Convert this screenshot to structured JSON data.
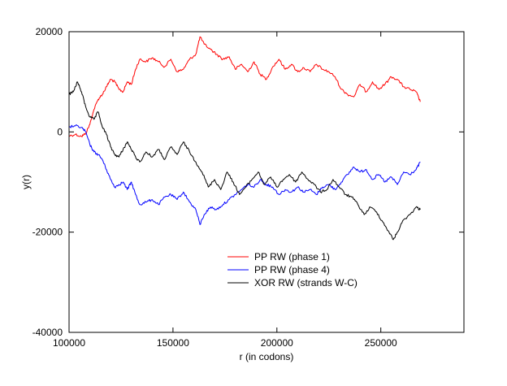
{
  "chart_data": {
    "type": "line",
    "title": "",
    "xlabel": "r (in codons)",
    "ylabel": "y(r)",
    "xlim": [
      100000,
      290000
    ],
    "ylim": [
      -40000,
      20000
    ],
    "xticks": [
      100000,
      150000,
      200000,
      250000
    ],
    "xtick_labels": [
      "100000",
      "150000",
      "200000",
      "250000"
    ],
    "yticks": [
      -40000,
      -20000,
      0,
      20000
    ],
    "ytick_labels": [
      "-40000",
      "-20000",
      "0",
      "20000"
    ],
    "grid": false,
    "legend_position": "center-right",
    "series": [
      {
        "name": "PP RW (phase 1)",
        "color": "#ff0000",
        "x": [
          100000,
          103000,
          106000,
          108000,
          110000,
          112000,
          114000,
          116000,
          118000,
          120000,
          122000,
          124000,
          126000,
          128000,
          130000,
          132000,
          134000,
          137000,
          140000,
          143000,
          146000,
          149000,
          152000,
          155000,
          158000,
          161000,
          163000,
          165000,
          168000,
          171000,
          174000,
          177000,
          180000,
          183000,
          186000,
          189000,
          192000,
          195000,
          198000,
          201000,
          204000,
          207000,
          210000,
          213000,
          216000,
          219000,
          222000,
          225000,
          228000,
          231000,
          234000,
          237000,
          240000,
          243000,
          246000,
          249000,
          252000,
          255000,
          258000,
          261000,
          264000,
          267000,
          269000
        ],
        "y": [
          -800,
          -500,
          -900,
          -300,
          1500,
          4500,
          6500,
          7500,
          9000,
          10500,
          10000,
          8500,
          8000,
          10000,
          9500,
          12500,
          14500,
          14000,
          14800,
          14000,
          13000,
          14500,
          12000,
          12500,
          14500,
          15500,
          19000,
          17500,
          16500,
          15500,
          14500,
          15000,
          12500,
          13500,
          12000,
          14000,
          11500,
          10500,
          13000,
          14500,
          12500,
          13500,
          12000,
          12800,
          12000,
          13500,
          12500,
          12000,
          11000,
          8500,
          7500,
          7000,
          9500,
          8000,
          10000,
          8500,
          9500,
          11000,
          10500,
          9000,
          8500,
          8000,
          6000
        ]
      },
      {
        "name": "PP RW (phase 4)",
        "color": "#0000ff",
        "x": [
          100000,
          103000,
          106000,
          108000,
          110000,
          112000,
          114000,
          116000,
          118000,
          120000,
          122000,
          124000,
          126000,
          128000,
          130000,
          132000,
          134000,
          137000,
          140000,
          143000,
          146000,
          149000,
          152000,
          155000,
          158000,
          161000,
          163000,
          165000,
          168000,
          171000,
          174000,
          177000,
          180000,
          183000,
          186000,
          189000,
          192000,
          195000,
          198000,
          201000,
          204000,
          207000,
          210000,
          213000,
          216000,
          219000,
          222000,
          225000,
          228000,
          231000,
          234000,
          237000,
          240000,
          243000,
          246000,
          249000,
          252000,
          255000,
          258000,
          261000,
          264000,
          267000,
          269000
        ],
        "y": [
          1000,
          1200,
          900,
          0,
          -2500,
          -4000,
          -4500,
          -5500,
          -7500,
          -9500,
          -11000,
          -10500,
          -10000,
          -11500,
          -10000,
          -12500,
          -14500,
          -14000,
          -13500,
          -14500,
          -13000,
          -12500,
          -13500,
          -12000,
          -14000,
          -15500,
          -18500,
          -16500,
          -15000,
          -15500,
          -14500,
          -13500,
          -12500,
          -11500,
          -10500,
          -11000,
          -9500,
          -10500,
          -11000,
          -12500,
          -11500,
          -12000,
          -11000,
          -12000,
          -11500,
          -12500,
          -11000,
          -10500,
          -11500,
          -10000,
          -8500,
          -7000,
          -8000,
          -7500,
          -9500,
          -8500,
          -10000,
          -9000,
          -10500,
          -8000,
          -8500,
          -7500,
          -6000
        ]
      },
      {
        "name": "XOR RW (strands W-C)",
        "color": "#000000",
        "x": [
          100000,
          102000,
          104000,
          106000,
          108000,
          110000,
          112000,
          114000,
          116000,
          118000,
          120000,
          122000,
          124000,
          126000,
          128000,
          130000,
          132000,
          134000,
          137000,
          140000,
          143000,
          146000,
          149000,
          152000,
          155000,
          158000,
          161000,
          164000,
          167000,
          170000,
          173000,
          176000,
          179000,
          182000,
          185000,
          188000,
          191000,
          194000,
          197000,
          200000,
          203000,
          206000,
          209000,
          212000,
          215000,
          218000,
          221000,
          224000,
          227000,
          230000,
          233000,
          236000,
          239000,
          242000,
          245000,
          248000,
          251000,
          254000,
          256000,
          258000,
          261000,
          264000,
          267000,
          269000
        ],
        "y": [
          7500,
          8000,
          10000,
          8000,
          5000,
          3000,
          2500,
          4000,
          1000,
          -500,
          -3000,
          -4500,
          -5000,
          -3500,
          -2000,
          -3500,
          -5000,
          -6000,
          -4000,
          -5000,
          -3500,
          -5500,
          -3000,
          -4500,
          -2000,
          -4000,
          -6000,
          -8000,
          -11000,
          -9500,
          -11500,
          -8000,
          -10000,
          -12500,
          -11000,
          -9500,
          -8000,
          -10500,
          -9000,
          -11000,
          -9500,
          -8500,
          -10000,
          -8000,
          -9500,
          -10500,
          -12000,
          -11500,
          -9500,
          -11000,
          -12500,
          -13000,
          -14500,
          -16500,
          -15000,
          -16000,
          -18000,
          -20000,
          -21500,
          -20000,
          -17500,
          -16500,
          -15000,
          -15500
        ]
      }
    ]
  }
}
